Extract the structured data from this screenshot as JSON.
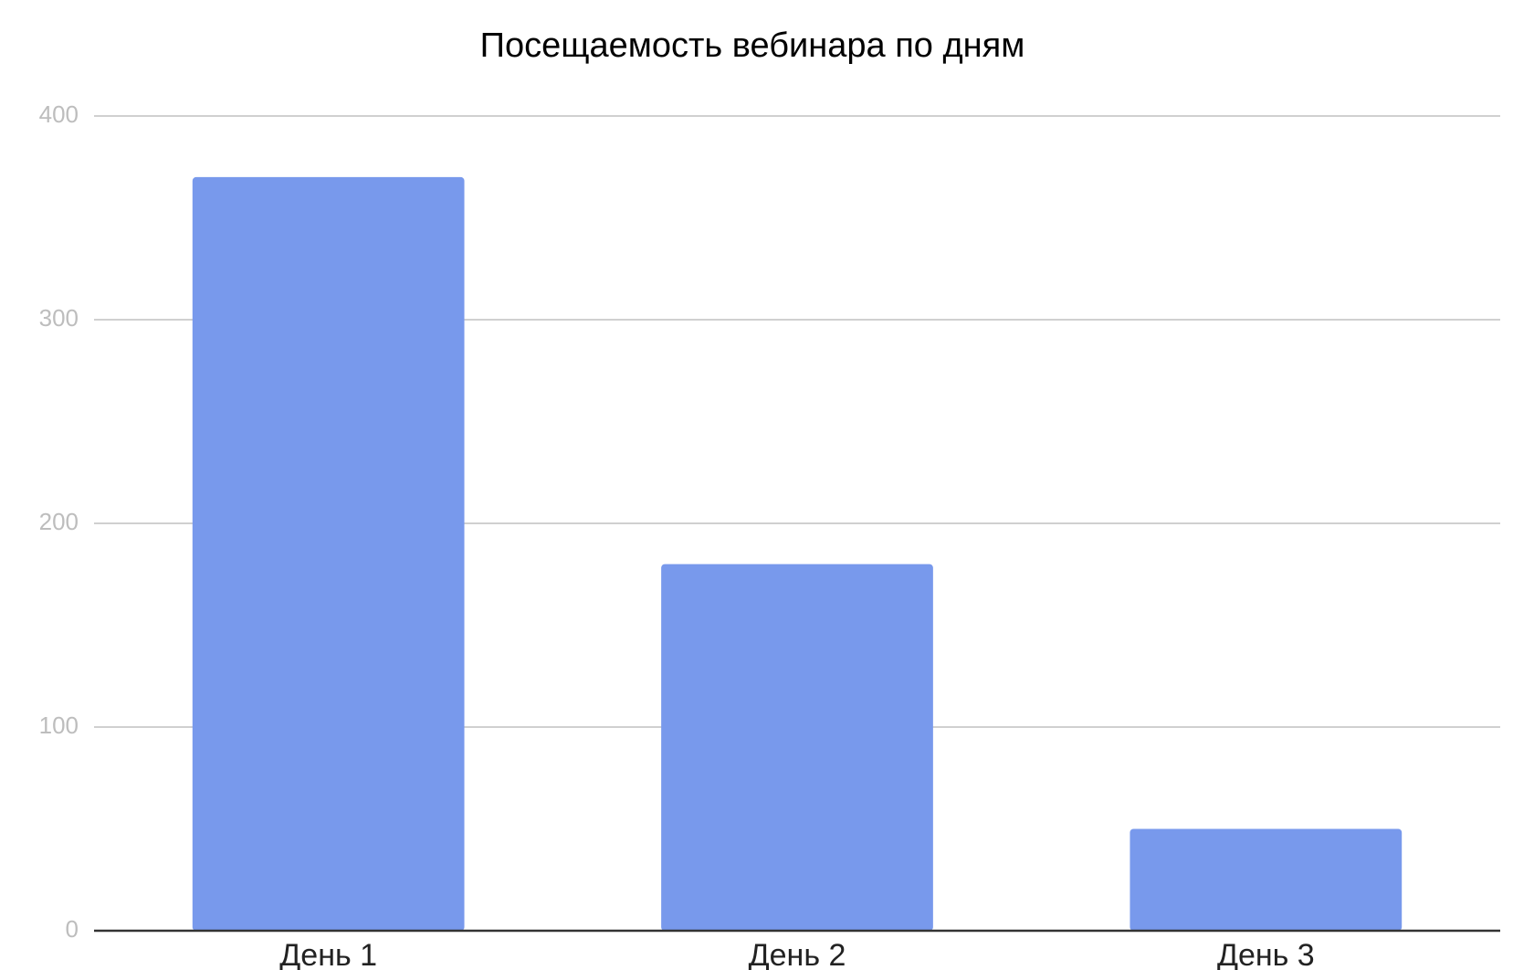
{
  "chart_data": {
    "type": "bar",
    "title": "Посещаемость вебинара по дням",
    "categories": [
      "День 1",
      "День 2",
      "День 3"
    ],
    "values": [
      370,
      180,
      50
    ],
    "color": "#7899ec",
    "ylim": [
      0,
      400
    ],
    "yticks": [
      0,
      100,
      200,
      300,
      400
    ],
    "grid": true
  }
}
